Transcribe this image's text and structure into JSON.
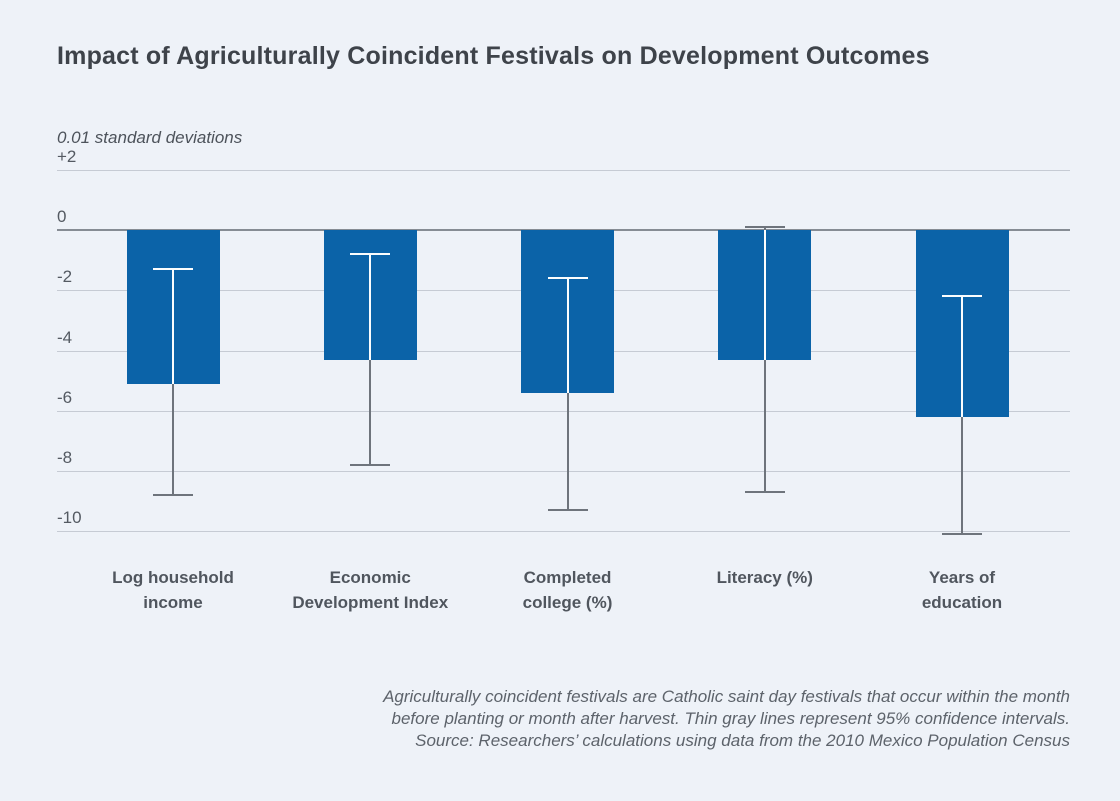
{
  "page": {
    "title": "Impact of Agriculturally Coincident Festivals on Development Outcomes",
    "unit_label": "0.01 standard deviations",
    "footnote_lines": [
      "Agriculturally coincident festivals are Catholic saint day festivals that occur within the month",
      "before planting or month after harvest. Thin gray lines represent 95% confidence intervals.",
      "Source: Researchers’ calculations using data from the 2010 Mexico Population Census"
    ]
  },
  "colors": {
    "background": "#eef2f8",
    "bar": "#0b63a8",
    "grid": "#c6cbd4",
    "zero_line": "#868c94",
    "ci_gray": "#6e747c",
    "ci_white": "#fbfdfe",
    "title_text": "#3e434a",
    "axis_text": "#545a62",
    "footnote_text": "#5d636b"
  },
  "chart_data": {
    "type": "bar",
    "title": "Impact of Agriculturally Coincident Festivals on Development Outcomes",
    "xlabel": "",
    "ylabel": "0.01 standard deviations",
    "ylim": [
      -10,
      2
    ],
    "yticks": [
      2,
      0,
      -2,
      -4,
      -6,
      -8,
      -10
    ],
    "ytick_labels": [
      "+2",
      "0",
      "-2",
      "-4",
      "-6",
      "-8",
      "-10"
    ],
    "grid": true,
    "legend": "none",
    "categories": [
      "Log household\nincome",
      "Economic\nDevelopment Index",
      "Completed\ncollege (%)",
      "Literacy (%)",
      "Years of\neducation"
    ],
    "values": [
      -5.1,
      -4.3,
      -5.4,
      -4.3,
      -6.2
    ],
    "ci_high": [
      -1.3,
      -0.8,
      -1.6,
      0.1,
      -2.2
    ],
    "ci_low": [
      -8.8,
      -7.8,
      -9.3,
      -8.7,
      -10.1
    ],
    "ci_note": "Thin gray lines represent 95% confidence intervals"
  }
}
